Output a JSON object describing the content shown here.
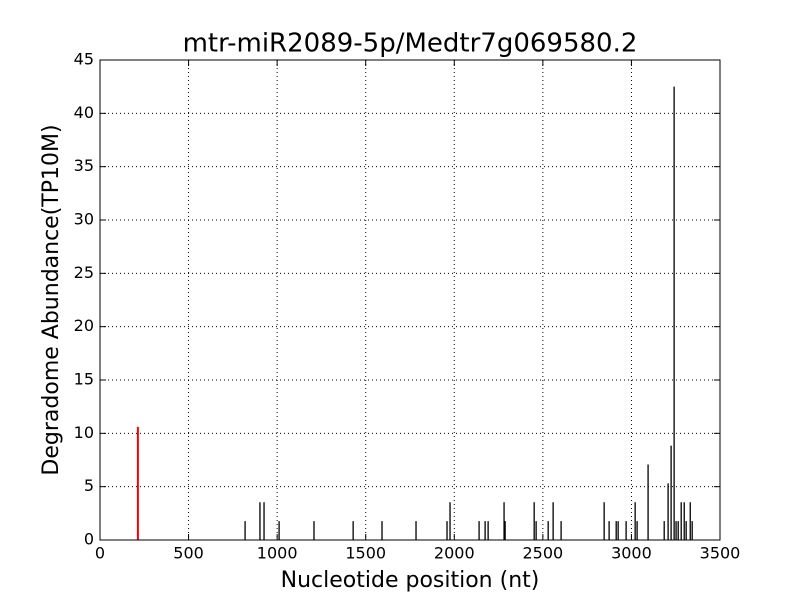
{
  "chart_data": {
    "type": "stem",
    "title": "mtr-miR2089-5p/Medtr7g069580.2",
    "x_label": "Nucleotide position (nt)",
    "y_label": "Degradome Abundance(TP10M)",
    "xlim": [
      0,
      3500
    ],
    "xticks": [
      0,
      500,
      1000,
      1500,
      2000,
      2500,
      3000,
      3500
    ],
    "ylim": [
      0,
      45
    ],
    "yticks": [
      0,
      5,
      10,
      15,
      20,
      25,
      30,
      35,
      40,
      45
    ],
    "grid": true,
    "series": [
      {
        "color": "#000000",
        "x": [
          819,
          903,
          926,
          1011,
          1208,
          1429,
          1592,
          1784,
          1959,
          1976,
          2140,
          2174,
          2191,
          2281,
          2287,
          2451,
          2462,
          2530,
          2558,
          2603,
          2846,
          2874,
          2914,
          2925,
          2970,
          3021,
          3032,
          3094,
          3185,
          3207,
          3224,
          3241,
          3252,
          3264,
          3281,
          3298,
          3309,
          3332,
          3343
        ],
        "values": [
          1.77,
          3.54,
          3.54,
          1.77,
          1.77,
          1.77,
          1.77,
          1.77,
          1.77,
          3.54,
          1.77,
          1.77,
          1.77,
          3.54,
          1.77,
          3.54,
          1.77,
          1.77,
          3.54,
          1.77,
          3.54,
          1.77,
          1.77,
          1.77,
          1.77,
          3.54,
          1.77,
          7.08,
          1.77,
          5.31,
          8.85,
          42.5,
          1.77,
          1.77,
          3.54,
          3.54,
          1.77,
          3.54,
          1.77
        ]
      },
      {
        "color": "#ff0000",
        "x": [
          214
        ],
        "values": [
          10.6
        ]
      }
    ]
  }
}
